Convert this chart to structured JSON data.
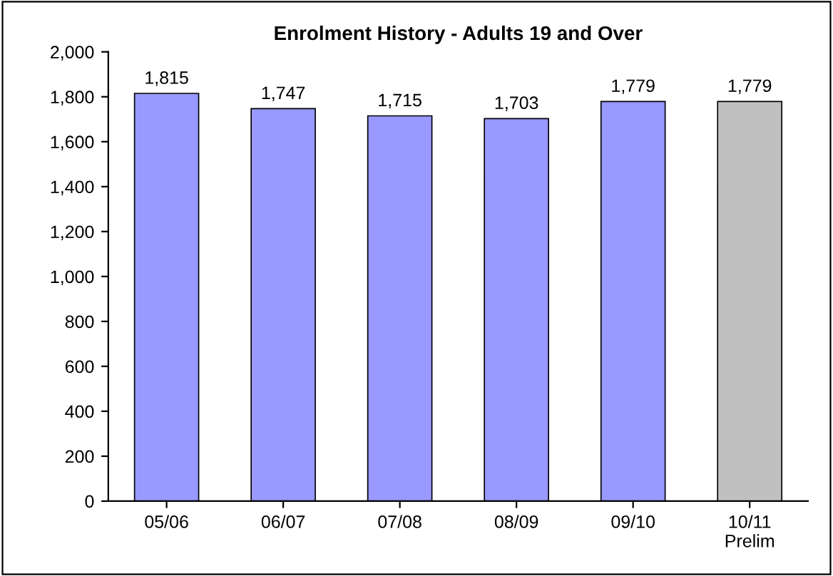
{
  "chart_data": {
    "type": "bar",
    "title": "Enrolment History - Adults 19 and Over",
    "categories": [
      "05/06",
      "06/07",
      "07/08",
      "08/09",
      "09/10",
      "10/11\nPrelim"
    ],
    "values": [
      1815,
      1747,
      1715,
      1703,
      1779,
      1779
    ],
    "value_labels": [
      "1,815",
      "1,747",
      "1,715",
      "1,703",
      "1,779",
      "1,779"
    ],
    "colors": [
      "#9999ff",
      "#9999ff",
      "#9999ff",
      "#9999ff",
      "#9999ff",
      "#c0c0c0"
    ],
    "ylim": [
      0,
      2000
    ],
    "yticks": [
      0,
      200,
      400,
      600,
      800,
      {
        "value": 1000,
        "label": "1,000"
      },
      {
        "value": 1200,
        "label": "1,200"
      },
      {
        "value": 1400,
        "label": "1,400"
      },
      {
        "value": 1600,
        "label": "1,600"
      },
      {
        "value": 1800,
        "label": "1,800"
      },
      {
        "value": 2000,
        "label": "2,000"
      }
    ],
    "grid": false,
    "legend": false
  }
}
